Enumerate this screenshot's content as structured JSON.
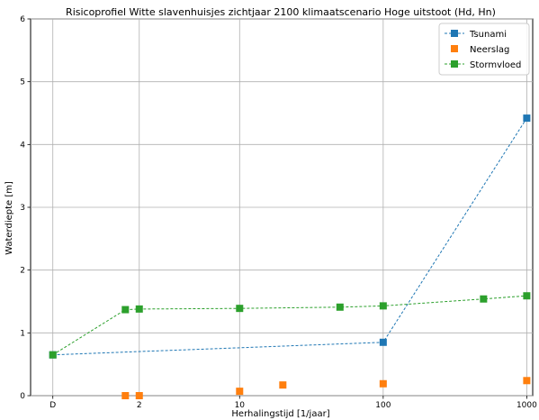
{
  "chart_data": {
    "type": "scatter",
    "title": "Risicoprofiel Witte slavenhuisjes zichtjaar 2100 klimaatscenario Hoge uitstoot (Hd, Hn)",
    "xlabel": "Herhalingstijd [1/jaar]",
    "ylabel": "Waterdiepte [m]",
    "x_scale": "log",
    "xlim": [
      0.35,
      1100
    ],
    "ylim": [
      0,
      6
    ],
    "grid": true,
    "legend_position": "top-right",
    "x_ticks": [
      {
        "value": 0.5,
        "label": "D"
      },
      {
        "value": 2,
        "label": "2"
      },
      {
        "value": 10,
        "label": "10"
      },
      {
        "value": 100,
        "label": "100"
      },
      {
        "value": 1000,
        "label": "1000"
      }
    ],
    "y_ticks": [
      0,
      1,
      2,
      3,
      4,
      5,
      6
    ],
    "series": [
      {
        "name": "Tsunami",
        "color": "#1f77b4",
        "style": "dashed-line-square-markers",
        "points": [
          [
            0.5,
            0.65
          ],
          [
            100,
            0.85
          ],
          [
            1000,
            4.42
          ]
        ]
      },
      {
        "name": "Neerslag",
        "color": "#ff7f0e",
        "style": "square-markers",
        "points": [
          [
            1.6,
            0.0
          ],
          [
            2,
            0.0
          ],
          [
            10,
            0.07
          ],
          [
            20,
            0.17
          ],
          [
            100,
            0.19
          ],
          [
            1000,
            0.24
          ]
        ]
      },
      {
        "name": "Stormvloed",
        "color": "#2ca02c",
        "style": "dashed-line-square-markers",
        "points": [
          [
            0.5,
            0.65
          ],
          [
            1.6,
            1.37
          ],
          [
            2,
            1.38
          ],
          [
            10,
            1.39
          ],
          [
            50,
            1.41
          ],
          [
            100,
            1.43
          ],
          [
            500,
            1.54
          ],
          [
            1000,
            1.59
          ]
        ]
      }
    ]
  }
}
